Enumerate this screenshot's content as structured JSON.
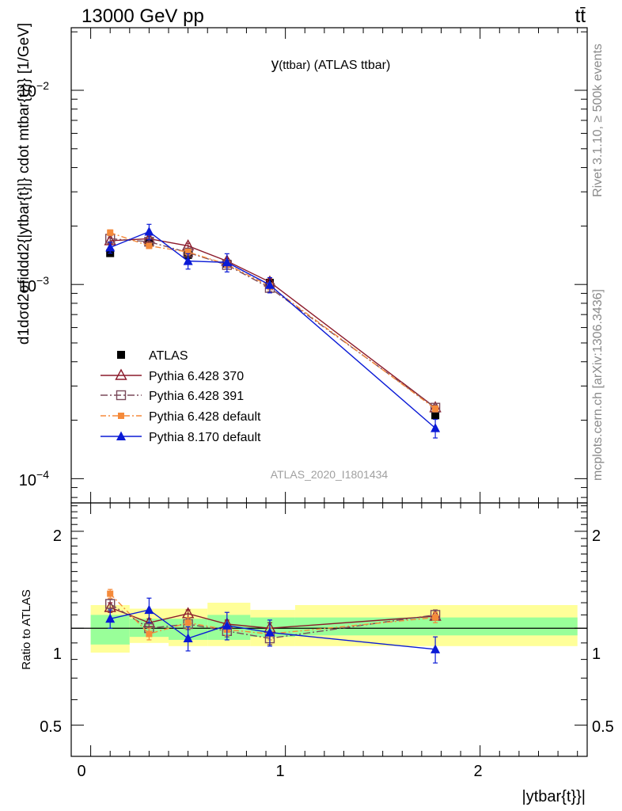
{
  "header": {
    "left": "13000 GeV pp",
    "right": "tt̄"
  },
  "side_texts": {
    "rivet": "Rivet 3.1.10, ≥ 500k events",
    "mcplots": "mcplots.cern.ch [arXiv:1306.3436]"
  },
  "main_plot": {
    "title_main": "y",
    "title_sub": "(ttbar)",
    "title_rest": " (ATLAS ttbar)",
    "analysis_id": "ATLAS_2020_I1801434",
    "ylabel": "d1dσd2σfiddd2{|ytbar{t}|} cdot mtbar{t}}} [1/GeV]",
    "ytick_labels": {
      "e_minus2": "10",
      "e_minus2_exp": "−2",
      "e_minus3": "10",
      "e_minus3_exp": "−3",
      "e_minus4": "10",
      "e_minus4_exp": "−4"
    }
  },
  "ratio_plot": {
    "ylabel": "Ratio to ATLAS",
    "ytick_labels": [
      "0.5",
      "1",
      "2"
    ]
  },
  "x_axis": {
    "label": "|ytbar{t}}|",
    "tick_labels": [
      "0",
      "1",
      "2"
    ]
  },
  "legend": {
    "placement": "lower-left",
    "entries": [
      {
        "label": "ATLAS"
      },
      {
        "label": "Pythia 6.428 370"
      },
      {
        "label": "Pythia 6.428 391"
      },
      {
        "label": "Pythia 6.428 default"
      },
      {
        "label": "Pythia 8.170 default"
      }
    ]
  },
  "colors": {
    "data": "#000000",
    "p370": "#8b1a2b",
    "p391": "#7a4a5a",
    "p6def": "#f58a3a",
    "p8def": "#0a1ad6",
    "band_inner": "#99ff99",
    "band_outer": "#ffff99"
  },
  "chart_data": {
    "type": "line",
    "xlim": [
      -0.1,
      2.55
    ],
    "ylim_main": [
      7.5e-05,
      0.021
    ],
    "ylog_main": true,
    "ylim_ratio": [
      0.4,
      2.45
    ],
    "ylog_ratio": true,
    "bins": [
      {
        "lo": 0.0,
        "hi": 0.2
      },
      {
        "lo": 0.2,
        "hi": 0.4
      },
      {
        "lo": 0.4,
        "hi": 0.6
      },
      {
        "lo": 0.6,
        "hi": 0.82
      },
      {
        "lo": 0.82,
        "hi": 1.05
      },
      {
        "lo": 1.05,
        "hi": 2.5
      }
    ],
    "x": [
      0.1,
      0.3,
      0.5,
      0.7,
      0.92,
      1.77
    ],
    "data": {
      "y": [
        0.00145,
        0.00165,
        0.00142,
        0.00128,
        0.00102,
        0.000212
      ],
      "yerr": [
        5e-05,
        6e-05,
        5e-05,
        5e-05,
        4e-05,
        1e-05
      ]
    },
    "bands": {
      "inner_lo": [
        0.89,
        0.94,
        0.92,
        0.92,
        0.94,
        0.95
      ],
      "inner_hi": [
        1.1,
        1.07,
        1.07,
        1.1,
        1.08,
        1.08
      ],
      "outer_lo": [
        0.84,
        0.9,
        0.88,
        0.88,
        0.88,
        0.88
      ],
      "outer_hi": [
        1.18,
        1.15,
        1.15,
        1.2,
        1.14,
        1.18
      ]
    },
    "series": [
      {
        "name": "Pythia 6.428 370",
        "key": "p370",
        "marker": "triangle-open",
        "dash": "",
        "y": [
          0.00168,
          0.00172,
          0.00158,
          0.00132,
          0.00103,
          0.000232
        ],
        "yerr": [
          6e-05,
          5e-05,
          5e-05,
          4e-05,
          4e-05,
          8e-06
        ],
        "ratio": [
          1.16,
          1.04,
          1.11,
          1.03,
          1.0,
          1.09
        ],
        "ratio_err": [
          0.04,
          0.03,
          0.03,
          0.03,
          0.04,
          0.03
        ]
      },
      {
        "name": "Pythia 6.428 391",
        "key": "p391",
        "marker": "square-open",
        "dash": "9,3,2,3",
        "y": [
          0.00172,
          0.00166,
          0.00146,
          0.00126,
          0.00096,
          0.000232
        ],
        "yerr": [
          6e-05,
          5e-05,
          5e-05,
          4e-05,
          4e-05,
          8e-06
        ],
        "ratio": [
          1.19,
          1.0,
          1.03,
          0.98,
          0.93,
          1.1
        ],
        "ratio_err": [
          0.04,
          0.04,
          0.04,
          0.04,
          0.04,
          0.04
        ]
      },
      {
        "name": "Pythia 6.428 default",
        "key": "p6def",
        "marker": "square-filled",
        "dash": "7,3,2,3",
        "y": [
          0.00185,
          0.00158,
          0.00147,
          0.00127,
          0.00098,
          0.000229
        ],
        "yerr": [
          6e-05,
          5e-05,
          5e-05,
          4e-05,
          4e-05,
          8e-06
        ],
        "ratio": [
          1.28,
          0.96,
          1.04,
          0.99,
          0.96,
          1.08
        ],
        "ratio_err": [
          0.04,
          0.04,
          0.04,
          0.04,
          0.04,
          0.04
        ]
      },
      {
        "name": "Pythia 8.170 default",
        "key": "p8def",
        "marker": "triangle-filled",
        "dash": "",
        "y": [
          0.00155,
          0.00187,
          0.00132,
          0.0013,
          0.000995,
          0.000182
        ],
        "yerr": [
          0.0001,
          0.00017,
          0.00012,
          0.00014,
          9e-05,
          2e-05
        ],
        "ratio": [
          1.07,
          1.14,
          0.93,
          1.02,
          0.97,
          0.86
        ],
        "ratio_err": [
          0.07,
          0.1,
          0.08,
          0.1,
          0.09,
          0.08
        ]
      }
    ]
  }
}
